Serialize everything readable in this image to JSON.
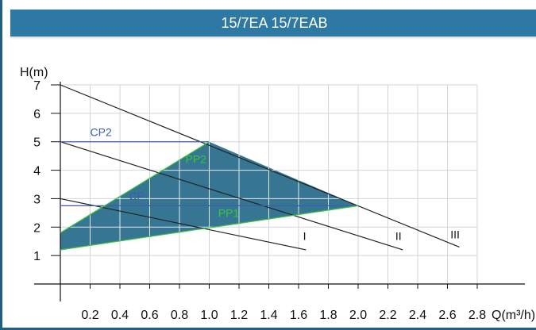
{
  "header": {
    "title": "15/7EA  15/7EAB"
  },
  "chart_data": {
    "type": "line",
    "title": "15/7EA  15/7EAB",
    "xlabel": "Q(m³/h)",
    "ylabel": "H(m)",
    "xlim": [
      0,
      2.8
    ],
    "ylim": [
      0,
      7
    ],
    "xticks": [
      "0.2",
      "0.4",
      "0.6",
      "0.8",
      "1.0",
      "1.2",
      "1.4",
      "1.6",
      "1.8",
      "2.0",
      "2.2",
      "2.4",
      "2.6",
      "2.8"
    ],
    "xtick_values": [
      0.2,
      0.4,
      0.6,
      0.8,
      1.0,
      1.2,
      1.4,
      1.6,
      1.8,
      2.0,
      2.2,
      2.4,
      2.6,
      2.8
    ],
    "yticks": [
      "1",
      "2",
      "3",
      "4",
      "5",
      "6",
      "7"
    ],
    "ytick_values": [
      1,
      2,
      3,
      4,
      5,
      6,
      7
    ],
    "grid": true,
    "series": [
      {
        "name": "I",
        "x": [
          0,
          1.65
        ],
        "y": [
          3.0,
          1.2
        ],
        "color": "#222222"
      },
      {
        "name": "II",
        "x": [
          0,
          2.3
        ],
        "y": [
          5.0,
          1.2
        ],
        "color": "#222222"
      },
      {
        "name": "III",
        "x": [
          0,
          2.68
        ],
        "y": [
          7.0,
          1.3
        ],
        "color": "#222222"
      },
      {
        "name": "CP2",
        "x": [
          0,
          1.0
        ],
        "y": [
          5.0,
          5.0
        ],
        "color": "#3a5fa8"
      },
      {
        "name": "CP",
        "x": [
          0,
          2.0
        ],
        "y": [
          2.75,
          2.75
        ],
        "color": "#3a5fa8"
      },
      {
        "name": "PP2",
        "x": [
          0,
          1.0
        ],
        "y": [
          1.8,
          5.0
        ],
        "color": "#3cc43c"
      },
      {
        "name": "PP1",
        "x": [
          0,
          2.0
        ],
        "y": [
          1.2,
          2.75
        ],
        "color": "#3cc43c"
      }
    ],
    "region": {
      "x": [
        0,
        1.0,
        2.0,
        0
      ],
      "y": [
        1.8,
        5.0,
        2.75,
        1.2
      ],
      "fill": "#2b6f8c"
    },
    "annotations": [
      {
        "text": "CP2",
        "x": 0.2,
        "y": 5.2,
        "color": "#3a5fa8"
      },
      {
        "text": "PP2",
        "x": 0.84,
        "y": 4.25,
        "color": "#3cc43c"
      },
      {
        "text": "CP",
        "x": 0.46,
        "y": 2.95,
        "color": "#3a5fa8"
      },
      {
        "text": "PP1",
        "x": 1.06,
        "y": 2.35,
        "color": "#3cc43c"
      },
      {
        "text": "I",
        "x": 1.63,
        "y": 1.55,
        "color": "#111111"
      },
      {
        "text": "II",
        "x": 2.25,
        "y": 1.55,
        "color": "#111111"
      },
      {
        "text": "III",
        "x": 2.62,
        "y": 1.6,
        "color": "#111111"
      }
    ]
  }
}
